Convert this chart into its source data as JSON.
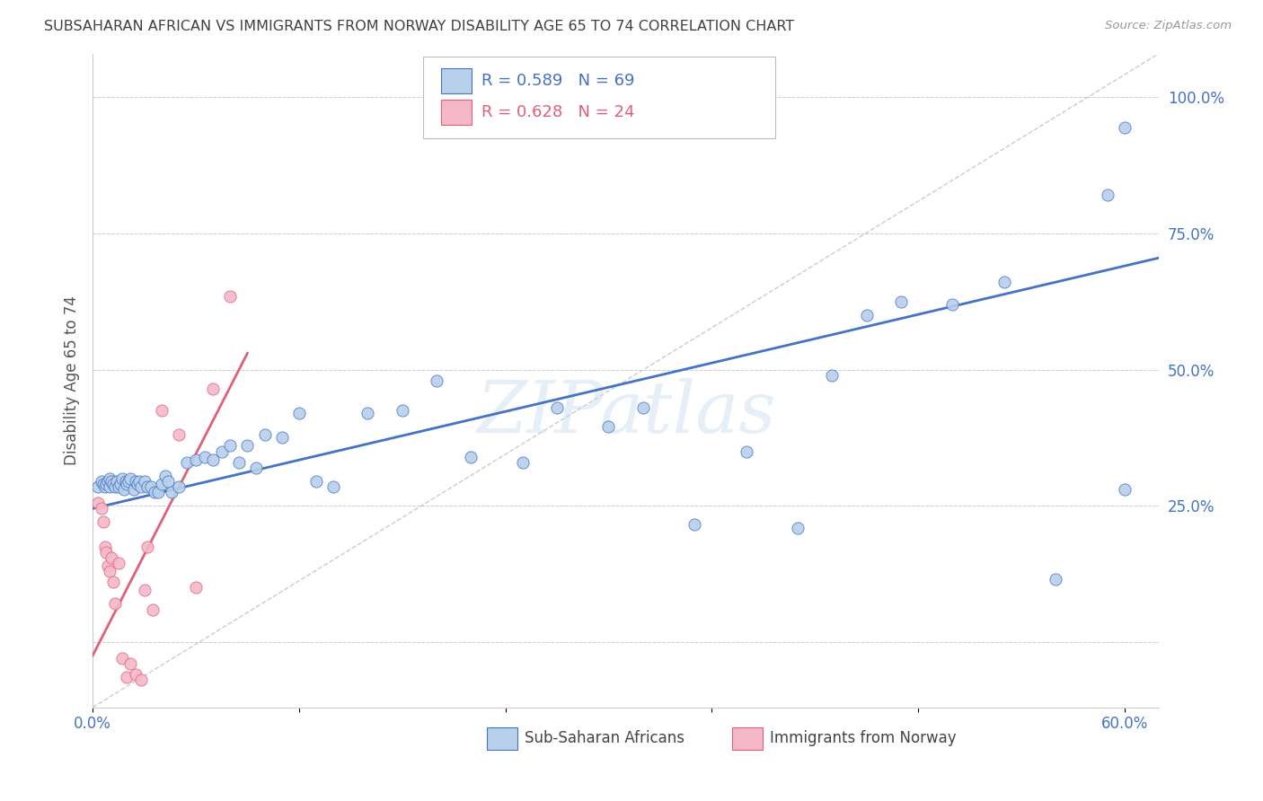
{
  "title": "SUBSAHARAN AFRICAN VS IMMIGRANTS FROM NORWAY DISABILITY AGE 65 TO 74 CORRELATION CHART",
  "source": "Source: ZipAtlas.com",
  "ylabel": "Disability Age 65 to 74",
  "xlim": [
    0.0,
    0.62
  ],
  "ylim": [
    -0.12,
    1.08
  ],
  "xticks": [
    0.0,
    0.12,
    0.24,
    0.36,
    0.48,
    0.6
  ],
  "xtick_labels": [
    "0.0%",
    "",
    "",
    "",
    "",
    "60.0%"
  ],
  "yticks": [
    0.0,
    0.25,
    0.5,
    0.75,
    1.0
  ],
  "ytick_labels": [
    "",
    "25.0%",
    "50.0%",
    "75.0%",
    "100.0%"
  ],
  "blue_R": 0.589,
  "blue_N": 69,
  "pink_R": 0.628,
  "pink_N": 24,
  "blue_color": "#b8d0ea",
  "pink_color": "#f5b8c8",
  "blue_line_color": "#4472c4",
  "pink_line_color": "#e0607a",
  "ref_line_color": "#cccccc",
  "grid_color": "#cccccc",
  "title_color": "#404040",
  "axis_tick_color": "#4472c4",
  "blue_scatter_x": [
    0.003,
    0.005,
    0.006,
    0.007,
    0.008,
    0.009,
    0.01,
    0.01,
    0.011,
    0.012,
    0.013,
    0.014,
    0.015,
    0.016,
    0.017,
    0.018,
    0.019,
    0.02,
    0.021,
    0.022,
    0.024,
    0.025,
    0.026,
    0.027,
    0.028,
    0.03,
    0.032,
    0.034,
    0.036,
    0.038,
    0.04,
    0.042,
    0.044,
    0.046,
    0.05,
    0.055,
    0.06,
    0.065,
    0.07,
    0.075,
    0.08,
    0.085,
    0.09,
    0.095,
    0.1,
    0.11,
    0.12,
    0.13,
    0.14,
    0.16,
    0.18,
    0.2,
    0.22,
    0.25,
    0.27,
    0.3,
    0.32,
    0.35,
    0.38,
    0.41,
    0.43,
    0.45,
    0.47,
    0.5,
    0.53,
    0.56,
    0.59,
    0.6,
    0.6
  ],
  "blue_scatter_y": [
    0.285,
    0.295,
    0.29,
    0.285,
    0.29,
    0.295,
    0.285,
    0.3,
    0.295,
    0.29,
    0.285,
    0.295,
    0.285,
    0.29,
    0.3,
    0.28,
    0.295,
    0.29,
    0.295,
    0.3,
    0.28,
    0.295,
    0.29,
    0.295,
    0.285,
    0.295,
    0.285,
    0.285,
    0.275,
    0.275,
    0.29,
    0.305,
    0.295,
    0.275,
    0.285,
    0.33,
    0.335,
    0.34,
    0.335,
    0.35,
    0.36,
    0.33,
    0.36,
    0.32,
    0.38,
    0.375,
    0.42,
    0.295,
    0.285,
    0.42,
    0.425,
    0.48,
    0.34,
    0.33,
    0.43,
    0.395,
    0.43,
    0.215,
    0.35,
    0.21,
    0.49,
    0.6,
    0.625,
    0.62,
    0.66,
    0.115,
    0.82,
    0.945,
    0.28
  ],
  "pink_scatter_x": [
    0.003,
    0.005,
    0.006,
    0.007,
    0.008,
    0.009,
    0.01,
    0.011,
    0.012,
    0.013,
    0.015,
    0.017,
    0.02,
    0.022,
    0.025,
    0.028,
    0.03,
    0.032,
    0.035,
    0.04,
    0.05,
    0.06,
    0.07,
    0.08
  ],
  "pink_scatter_y": [
    0.255,
    0.245,
    0.22,
    0.175,
    0.165,
    0.14,
    0.13,
    0.155,
    0.11,
    0.07,
    0.145,
    -0.03,
    -0.065,
    -0.04,
    -0.06,
    -0.07,
    0.095,
    0.175,
    0.06,
    0.425,
    0.38,
    0.1,
    0.465,
    0.635
  ],
  "blue_trendline_x": [
    0.0,
    0.62
  ],
  "blue_trendline_y": [
    0.245,
    0.705
  ],
  "pink_trendline_x": [
    0.0,
    0.09
  ],
  "pink_trendline_y": [
    -0.025,
    0.53
  ],
  "ref_line_x": [
    0.0,
    0.62
  ],
  "ref_line_y": [
    -0.12,
    1.08
  ]
}
